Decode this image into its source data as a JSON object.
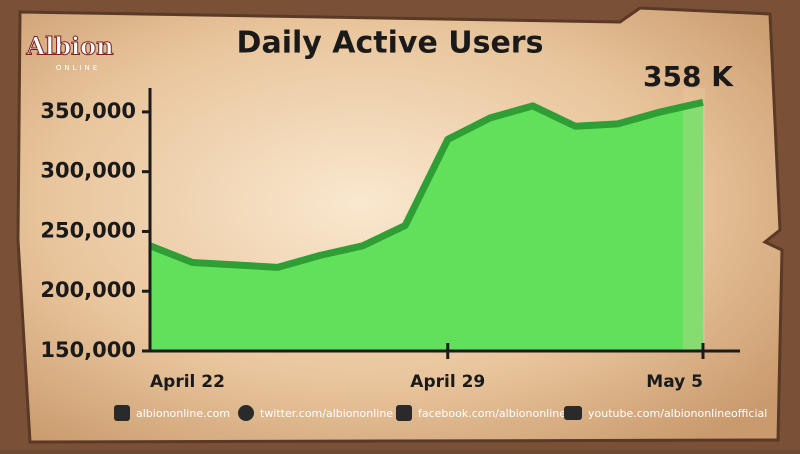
{
  "brand": {
    "name": "Albion",
    "sub": "ONLINE"
  },
  "chart_data": {
    "type": "area",
    "title": "Daily Active Users",
    "categories": [
      "April 22",
      null,
      null,
      null,
      null,
      null,
      null,
      "April 29",
      null,
      null,
      null,
      null,
      null,
      "May 5"
    ],
    "values": [
      238000,
      224000,
      222000,
      220000,
      230000,
      238000,
      255000,
      327000,
      345000,
      355000,
      338000,
      340000,
      350000,
      358000
    ],
    "annotation": "358 K",
    "color": "#62e05c",
    "line_color": "#2e9e35",
    "ylim": [
      150000,
      370000
    ],
    "yticks": [
      {
        "value": 150000,
        "label": "150,000"
      },
      {
        "value": 200000,
        "label": "200,000"
      },
      {
        "value": 250000,
        "label": "250,000"
      },
      {
        "value": 300000,
        "label": "300,000"
      },
      {
        "value": 350000,
        "label": "350,000"
      }
    ]
  },
  "footer": [
    "albiononline.com",
    "twitter.com/albiononline",
    "facebook.com/albiononline",
    "youtube.com/albiononlineofficial"
  ]
}
